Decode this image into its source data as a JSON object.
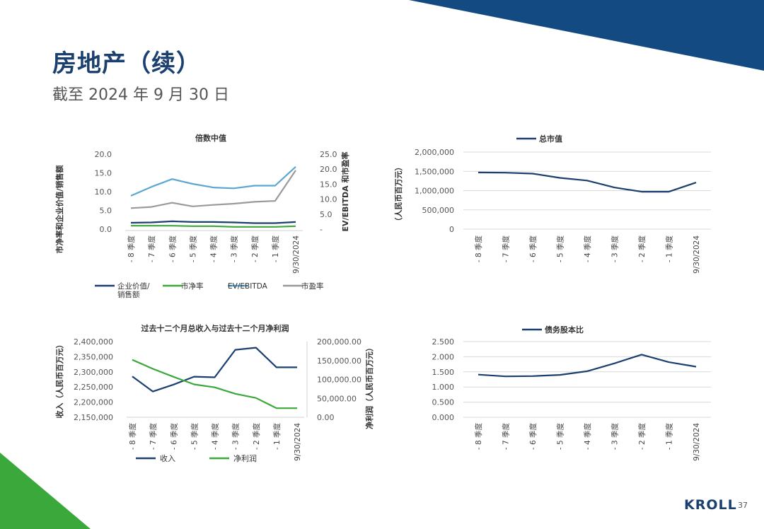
{
  "page": {
    "title": "房地产（续）",
    "subtitle": "截至 2024 年 9 月 30 日",
    "brand": "KROLL",
    "page_number": "37",
    "colors": {
      "navy": "#1b3f6e",
      "green": "#3aa83a",
      "lightblue": "#5ba7d1",
      "gray": "#9a9a9a",
      "banner": "#144a82"
    }
  },
  "chart_data": [
    {
      "id": "multiples",
      "type": "line",
      "title": "倍数中值",
      "categories": [
        "- 8 季度",
        "- 7 季度",
        "- 6 季度",
        "- 5 季度",
        "- 4 季度",
        "- 3 季度",
        "- 2 季度",
        "- 1 季度",
        "9/30/2024"
      ],
      "ylabel_left": "市净率和企业价值/销售额",
      "ylabel_right": "EV/EBITDA 和市盈率",
      "yticks_left": [
        "20.0",
        "15.0",
        "10.0",
        "5.0",
        "0.0"
      ],
      "yticks_right": [
        "25.0",
        "20.0",
        "15.0",
        "10.0",
        "5.0",
        "-"
      ],
      "ylim_left": [
        0,
        20
      ],
      "ylim_right": [
        0,
        25
      ],
      "series": [
        {
          "name": "企业价值/销售额",
          "axis": "left",
          "color": "#1b3f6e",
          "values": [
            1.7,
            1.8,
            2.1,
            1.9,
            1.9,
            1.8,
            1.6,
            1.6,
            1.9
          ]
        },
        {
          "name": "市净率",
          "axis": "left",
          "color": "#3aa83a",
          "values": [
            0.9,
            0.9,
            0.9,
            0.8,
            0.8,
            0.6,
            0.6,
            0.6,
            0.8
          ]
        },
        {
          "name": "EV/EBITDA",
          "axis": "right",
          "color": "#5ba7d1",
          "values": [
            11.1,
            14.1,
            16.7,
            15.1,
            13.9,
            13.6,
            14.5,
            14.5,
            20.8
          ]
        },
        {
          "name": "市盈率",
          "axis": "right",
          "color": "#9a9a9a",
          "values": [
            7.0,
            7.4,
            8.8,
            7.6,
            8.1,
            8.5,
            9.1,
            9.4,
            19.6
          ]
        }
      ],
      "legend": [
        {
          "name": "企业价值/",
          "name2": "销售额",
          "color": "#1b3f6e"
        },
        {
          "name": "市净率",
          "color": "#3aa83a"
        },
        {
          "name": "EV/EBITDA",
          "color": "#5ba7d1"
        },
        {
          "name": "市盈率",
          "color": "#9a9a9a"
        }
      ]
    },
    {
      "id": "mktcap",
      "type": "line",
      "title": "总市值",
      "categories": [
        "- 8 季度",
        "- 7 季度",
        "- 6 季度",
        "- 5 季度",
        "- 4 季度",
        "- 3 季度",
        "- 2 季度",
        "- 1 季度",
        "9/30/2024"
      ],
      "ylabel": "（人民币百万元）",
      "yticks": [
        "2,000,000",
        "1,500,000",
        "1,000,000",
        "500,000",
        "0"
      ],
      "ylim": [
        0,
        2000000
      ],
      "series": [
        {
          "name": "总市值",
          "color": "#1b3f6e",
          "values": [
            1470000,
            1465000,
            1440000,
            1330000,
            1260000,
            1080000,
            970000,
            970000,
            1210000
          ]
        }
      ]
    },
    {
      "id": "revenue",
      "type": "line",
      "title": "过去十二个月总收入与过去十二个月净利润",
      "categories": [
        "- 8 季度",
        "- 7 季度",
        "- 6 季度",
        "- 5 季度",
        "- 4 季度",
        "- 3 季度",
        "- 2 季度",
        "- 1 季度",
        "9/30/2024"
      ],
      "ylabel_left": "收入（人民币百万元）",
      "ylabel_right": "净利润（人民币百万元）",
      "yticks_left": [
        "2,400,000",
        "2,350,000",
        "2,300,000",
        "2,250,000",
        "2,200,000",
        "2,150,000"
      ],
      "yticks_right": [
        "200,000.00",
        "150,000.00",
        "100,000.00",
        "50,000.00",
        "0.00"
      ],
      "ylim_left": [
        2150000,
        2400000
      ],
      "ylim_right": [
        0,
        200000
      ],
      "series": [
        {
          "name": "收入",
          "axis": "left",
          "color": "#1b3f6e",
          "values": [
            2285000,
            2235000,
            2258000,
            2284000,
            2282000,
            2373000,
            2380000,
            2315000,
            2315000
          ]
        },
        {
          "name": "净利润",
          "axis": "right",
          "color": "#3aa83a",
          "values": [
            152000,
            128000,
            107000,
            87000,
            79000,
            62000,
            51000,
            24000,
            24000
          ]
        }
      ]
    },
    {
      "id": "debt",
      "type": "line",
      "title": "债务股本比",
      "categories": [
        "- 8 季度",
        "- 7 季度",
        "- 6 季度",
        "- 5 季度",
        "- 4 季度",
        "- 3 季度",
        "- 2 季度",
        "- 1 季度",
        "9/30/2024"
      ],
      "yticks": [
        "2.500",
        "2.000",
        "1.500",
        "1.000",
        "0.500",
        "0.000"
      ],
      "ylim": [
        0,
        2.5
      ],
      "series": [
        {
          "name": "债务股本比",
          "color": "#1b3f6e",
          "values": [
            1.41,
            1.35,
            1.36,
            1.4,
            1.52,
            1.78,
            2.07,
            1.82,
            1.67
          ]
        }
      ]
    }
  ]
}
